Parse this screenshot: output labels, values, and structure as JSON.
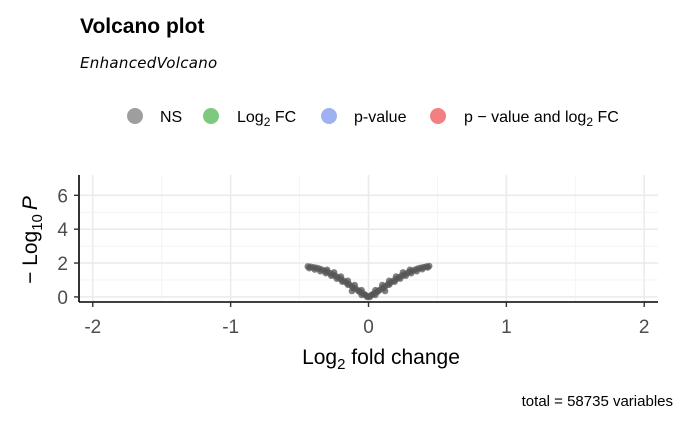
{
  "chart_data": {
    "type": "scatter",
    "title": "Volcano plot",
    "subtitle": "EnhancedVolcano",
    "xlabel": {
      "base": "Log",
      "sub": "2",
      "rest": " fold change"
    },
    "ylabel": {
      "prefix": "− Log",
      "sub": "10",
      "var": "P"
    },
    "xlim": [
      -2.1,
      2.1
    ],
    "ylim": [
      -0.3,
      7.2
    ],
    "xticks": [
      -2,
      -1,
      0,
      1,
      2
    ],
    "yticks": [
      0,
      2,
      4,
      6
    ],
    "grid": true,
    "legend_position": "top",
    "legend": [
      {
        "key": "ns",
        "label": "NS",
        "color": "#9e9e9e"
      },
      {
        "key": "fc",
        "label_parts": [
          "Log",
          "2",
          " FC"
        ],
        "color": "#7fc97f"
      },
      {
        "key": "p",
        "label": "p-value",
        "color": "#9fb1f1"
      },
      {
        "key": "pfc",
        "label_parts": [
          "p − value and log",
          "2",
          " FC"
        ],
        "color": "#f28080"
      }
    ],
    "series": [
      {
        "name": "NS",
        "color": "#555555",
        "points": [
          [
            -0.44,
            1.8
          ],
          [
            -0.42,
            1.78
          ],
          [
            -0.4,
            1.75
          ],
          [
            -0.38,
            1.72
          ],
          [
            -0.36,
            1.68
          ],
          [
            -0.34,
            1.62
          ],
          [
            -0.32,
            1.55
          ],
          [
            -0.3,
            1.48
          ],
          [
            -0.28,
            1.4
          ],
          [
            -0.26,
            1.33
          ],
          [
            -0.24,
            1.25
          ],
          [
            -0.22,
            1.15
          ],
          [
            -0.2,
            1.05
          ],
          [
            -0.18,
            0.95
          ],
          [
            -0.16,
            0.85
          ],
          [
            -0.14,
            0.74
          ],
          [
            -0.12,
            0.63
          ],
          [
            -0.1,
            0.52
          ],
          [
            -0.08,
            0.41
          ],
          [
            -0.06,
            0.3
          ],
          [
            -0.04,
            0.2
          ],
          [
            -0.02,
            0.1
          ],
          [
            0.0,
            0.02
          ],
          [
            0.02,
            0.1
          ],
          [
            0.04,
            0.2
          ],
          [
            0.06,
            0.3
          ],
          [
            0.08,
            0.41
          ],
          [
            0.1,
            0.52
          ],
          [
            0.12,
            0.63
          ],
          [
            0.14,
            0.74
          ],
          [
            0.16,
            0.85
          ],
          [
            0.18,
            0.95
          ],
          [
            0.2,
            1.05
          ],
          [
            0.22,
            1.15
          ],
          [
            0.24,
            1.25
          ],
          [
            0.26,
            1.33
          ],
          [
            0.28,
            1.4
          ],
          [
            0.3,
            1.48
          ],
          [
            0.32,
            1.55
          ],
          [
            0.34,
            1.62
          ],
          [
            0.36,
            1.68
          ],
          [
            0.38,
            1.72
          ],
          [
            0.4,
            1.76
          ],
          [
            0.42,
            1.79
          ],
          [
            0.44,
            1.82
          ],
          [
            -0.43,
            1.7
          ],
          [
            -0.39,
            1.62
          ],
          [
            -0.35,
            1.52
          ],
          [
            -0.31,
            1.4
          ],
          [
            -0.27,
            1.25
          ],
          [
            -0.23,
            1.08
          ],
          [
            -0.19,
            0.9
          ],
          [
            -0.15,
            0.72
          ],
          [
            -0.11,
            0.52
          ],
          [
            -0.07,
            0.33
          ],
          [
            -0.03,
            0.15
          ],
          [
            0.03,
            0.15
          ],
          [
            0.07,
            0.33
          ],
          [
            0.11,
            0.52
          ],
          [
            0.15,
            0.72
          ],
          [
            0.19,
            0.9
          ],
          [
            0.23,
            1.08
          ],
          [
            0.27,
            1.25
          ],
          [
            0.31,
            1.4
          ],
          [
            0.35,
            1.52
          ],
          [
            0.39,
            1.64
          ],
          [
            0.43,
            1.74
          ],
          [
            -0.3,
            1.6
          ],
          [
            -0.25,
            1.45
          ],
          [
            -0.2,
            1.2
          ],
          [
            -0.15,
            0.95
          ],
          [
            -0.1,
            0.7
          ],
          [
            -0.05,
            0.4
          ],
          [
            0.05,
            0.4
          ],
          [
            0.1,
            0.7
          ],
          [
            0.15,
            0.95
          ],
          [
            0.2,
            1.2
          ],
          [
            0.25,
            1.45
          ],
          [
            0.3,
            1.6
          ],
          [
            -0.01,
            0.0
          ],
          [
            0.01,
            0.0
          ],
          [
            -0.05,
            0.12
          ],
          [
            0.05,
            0.12
          ],
          [
            -0.12,
            0.35
          ],
          [
            0.12,
            0.35
          ]
        ]
      }
    ],
    "caption": "total = 58735 variables"
  }
}
